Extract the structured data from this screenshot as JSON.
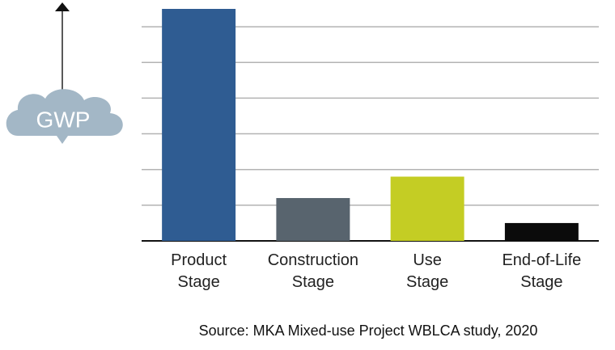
{
  "chart_data": {
    "type": "bar",
    "y_label": "GWP",
    "categories": [
      "Product Stage",
      "Construction Stage",
      "Use Stage",
      "End-of-Life Stage"
    ],
    "values": [
      6.5,
      1.2,
      1.8,
      0.5
    ],
    "colors": [
      "#2f5c92",
      "#58646e",
      "#c4cd24",
      "#0b0b0b"
    ],
    "ylim": [
      0,
      6.5
    ],
    "yticks": [
      0,
      1,
      2,
      3,
      4,
      5,
      6
    ],
    "grid": true,
    "source": "Source: MKA Mixed-use Project WBLCA study, 2020"
  }
}
